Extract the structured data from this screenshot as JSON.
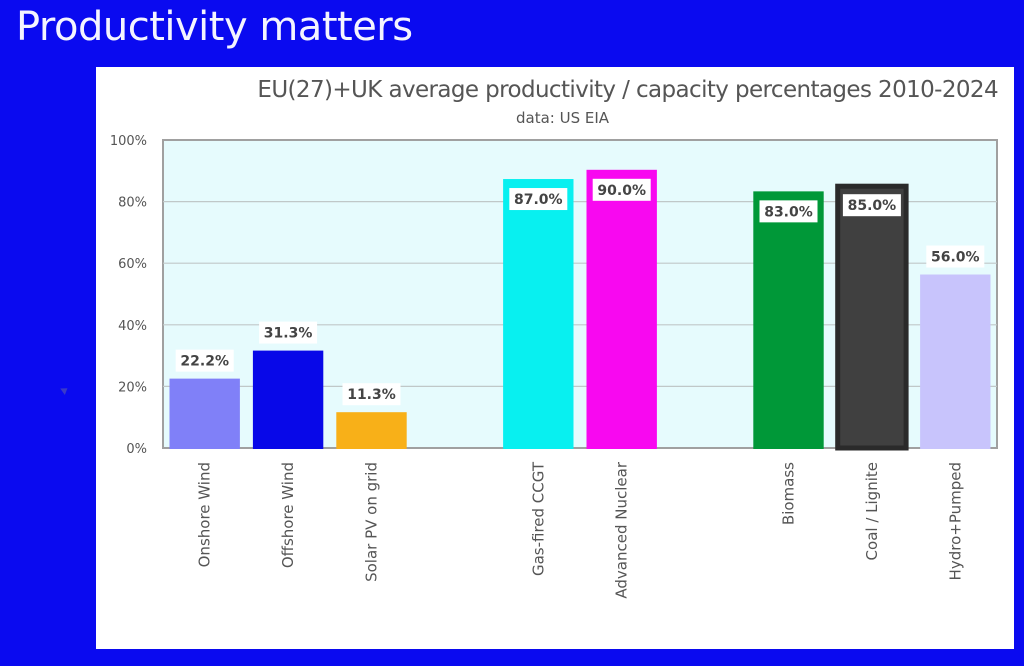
{
  "slide": {
    "title": "Productivity matters",
    "background_color": "#0a0af0"
  },
  "chart_data": {
    "type": "bar",
    "title": "EU(27)+UK average productivity / capacity percentages 2010-2024",
    "subtitle": "data: US  EIA",
    "xlabel": "",
    "ylabel": "",
    "ylim": [
      0,
      100
    ],
    "yticks": [
      0,
      20,
      40,
      60,
      80,
      100
    ],
    "ytick_labels": [
      "0%",
      "20%",
      "40%",
      "60%",
      "80%",
      "100%"
    ],
    "grid": true,
    "legend": "none",
    "plot_background": "#e6fbfd",
    "categories": [
      "Onshore Wind",
      "Offshore Wind",
      "Solar PV on grid",
      "",
      "Gas-fired CCGT",
      "Advanced Nuclear",
      "",
      "Biomass",
      "Coal / Lignite",
      "Hydro+Pumped"
    ],
    "values": [
      22.2,
      31.3,
      11.3,
      null,
      87.0,
      90.0,
      null,
      83.0,
      85.0,
      56.0
    ],
    "data_labels": [
      "22.2%",
      "31.3%",
      "11.3%",
      "",
      "87.0%",
      "90.0%",
      "",
      "83.0%",
      "85.0%",
      "56.0%"
    ],
    "colors": [
      "#8080f8",
      "#0808e8",
      "#f8b018",
      "",
      "#08f0f0",
      "#f808f0",
      "",
      "#009838",
      "#404040",
      "#c8c4fc"
    ],
    "label_inside": [
      false,
      false,
      false,
      false,
      true,
      true,
      false,
      true,
      true,
      false
    ]
  }
}
